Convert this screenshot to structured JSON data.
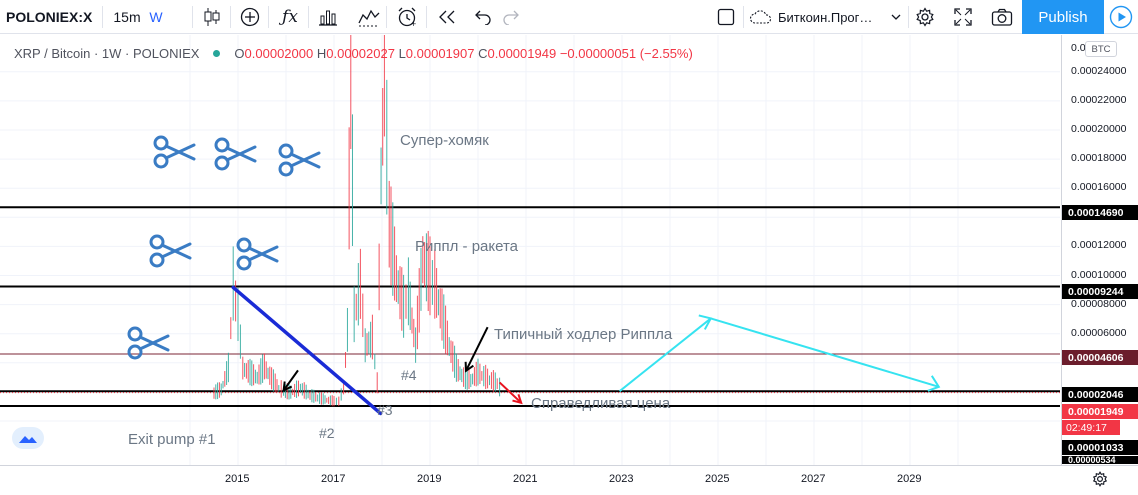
{
  "toolbar": {
    "symbol": "POLONIEX:X",
    "interval": "15m",
    "interval_week": "W",
    "layout_name": "Биткоин.Прог…",
    "publish_label": "Publish",
    "icons": [
      "candles-icon",
      "add-indicator-icon",
      "fx-icon",
      "bar-compare-icon",
      "alert-icon",
      "replay-icon",
      "undo-icon",
      "redo-icon",
      "checkbox-icon",
      "cloud-icon",
      "chevron-down-icon",
      "gear-icon",
      "fullscreen-icon",
      "camera-icon",
      "play-icon"
    ]
  },
  "legend": {
    "title": "XRP / Bitcoin · 1W · POLONIEX",
    "open_label": "O",
    "open": "0.00002000",
    "high_label": "H",
    "high": "0.00002027",
    "low_label": "L",
    "low": "0.00001907",
    "close_label": "C",
    "close": "0.00001949",
    "change": "−0.00000051 (−2.55%)"
  },
  "annotations": {
    "super_hamster": "Супер-хомяк",
    "ripple_rocket": "Риппл - ракета",
    "typical_holder": "Типичный ходлер Риппла",
    "fair_price": "Справедливая цена",
    "exit_pump": "Exit pump #1",
    "count2": "#2",
    "count3": "#3",
    "count4": "#4"
  },
  "price_axis": {
    "unit": "BTC",
    "ticks": [
      "0.00024000",
      "0.00022000",
      "0.00020000",
      "0.00018000",
      "0.00016000",
      "0.00012000",
      "0.00010000",
      "0.00008000",
      "0.00006000"
    ],
    "top_partial": "0.0",
    "labels": {
      "line1": "0.00014690",
      "line2": "0.00009244",
      "line3": "0.00004606",
      "line4": "0.00002046",
      "last": "0.00001949",
      "countdown": "02:49:17",
      "line5": "0.00001033",
      "bottom_partial": "0.00000534"
    }
  },
  "time_axis": {
    "ticks": [
      "2015",
      "2017",
      "2019",
      "2021",
      "2023",
      "2025",
      "2027",
      "2029"
    ]
  },
  "colors": {
    "accent": "#2196f3",
    "up": "#26a69a",
    "down": "#f23645",
    "trend_blue": "#1a2bd6",
    "projection": "#36e3f0",
    "scissors": "#3a7cc4",
    "maroon_line": "#7b2535"
  },
  "chart_data": {
    "type": "candlestick",
    "title": "XRP / Bitcoin · 1W · POLONIEX",
    "ylim": [
      0,
      0.000262
    ],
    "xlim": [
      2013.55,
      2030.6
    ],
    "horizontal_levels": [
      0.0001469,
      9.244e-05,
      4.606e-05,
      2.046e-05,
      1.033e-05
    ],
    "last_price": 1.949e-05,
    "price_path": [
      [
        2014.5,
        1.85e-05
      ],
      [
        2014.65,
        2.1e-05
      ],
      [
        2014.8,
        3.5e-05
      ],
      [
        2014.9,
        9e-05
      ],
      [
        2015.0,
        7e-05
      ],
      [
        2015.1,
        3.5e-05
      ],
      [
        2015.25,
        3.2e-05
      ],
      [
        2015.4,
        2.9e-05
      ],
      [
        2015.55,
        3.6e-05
      ],
      [
        2015.7,
        2.8e-05
      ],
      [
        2015.85,
        2.2e-05
      ],
      [
        2015.95,
        2e-05
      ],
      [
        2016.1,
        1.9e-05
      ],
      [
        2016.3,
        2.2e-05
      ],
      [
        2016.5,
        1.7e-05
      ],
      [
        2016.7,
        1.5e-05
      ],
      [
        2016.85,
        1.4e-05
      ],
      [
        2017.0,
        1.3e-05
      ],
      [
        2017.1,
        1.3e-05
      ],
      [
        2017.2,
        2.2e-05
      ],
      [
        2017.28,
        6e-05
      ],
      [
        2017.35,
        0.000245
      ],
      [
        2017.42,
        7e-05
      ],
      [
        2017.55,
        9e-05
      ],
      [
        2017.65,
        5e-05
      ],
      [
        2017.8,
        5.5e-05
      ],
      [
        2017.9,
        2.5e-05
      ],
      [
        2017.98,
        0.000165
      ],
      [
        2018.05,
        0.00023
      ],
      [
        2018.15,
        0.00013
      ],
      [
        2018.3,
        9.5e-05
      ],
      [
        2018.45,
        7.5e-05
      ],
      [
        2018.55,
        8.5e-05
      ],
      [
        2018.7,
        5e-05
      ],
      [
        2018.85,
        0.000108
      ],
      [
        2019.0,
        9.5e-05
      ],
      [
        2019.1,
        9e-05
      ],
      [
        2019.25,
        7e-05
      ],
      [
        2019.4,
        5e-05
      ],
      [
        2019.55,
        3.5e-05
      ],
      [
        2019.7,
        2.9e-05
      ],
      [
        2019.85,
        2.7e-05
      ],
      [
        2020.0,
        3.2e-05
      ],
      [
        2020.2,
        2.8e-05
      ],
      [
        2020.4,
        2.5e-05
      ],
      [
        2020.5,
        1.95e-05
      ]
    ],
    "trend_lines": [
      {
        "name": "downtrend",
        "from": [
          2014.9,
          9.18e-05
        ],
        "to": [
          2017.97,
          5.2e-06
        ]
      },
      {
        "name": "projection-up",
        "from": [
          2022.95,
          2.05e-05
        ],
        "to": [
          2024.85,
          7.05e-05
        ]
      },
      {
        "name": "projection-down",
        "from": [
          2024.85,
          7.05e-05
        ],
        "to": [
          2029.6,
          2.35e-05
        ]
      }
    ]
  }
}
